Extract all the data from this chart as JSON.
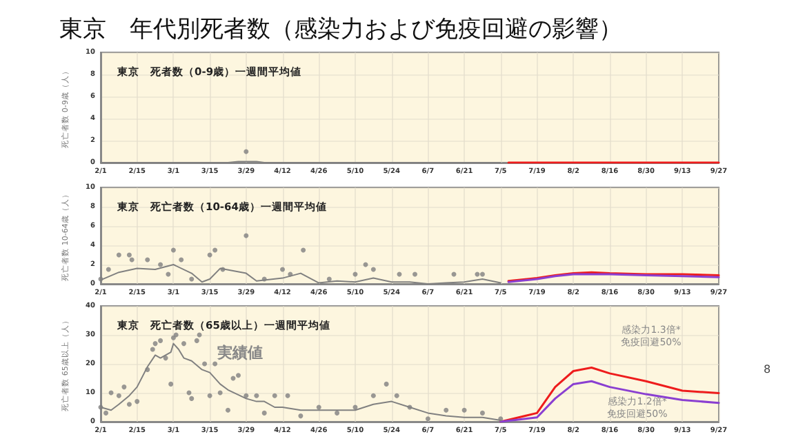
{
  "chart_data": [
    {
      "type": "line",
      "title": "東京　年代別死者数（感染力および免疫回避の影響）",
      "subtitle": "東京　死者数（0-9歳）一週間平均値",
      "ylabel": "死亡者数 0-9歳（人）",
      "xlim": [
        "--02-01",
        "--09-27"
      ],
      "xticks": [
        {
          "value": "--02-01",
          "label": "2/1"
        },
        {
          "value": "--02-15",
          "label": "2/15"
        },
        {
          "value": "--03-01",
          "label": "3/1"
        },
        {
          "value": "--03-15",
          "label": "3/15"
        },
        {
          "value": "--03-29",
          "label": "3/29"
        },
        {
          "value": "--04-12",
          "label": "4/12"
        },
        {
          "value": "--04-26",
          "label": "4/26"
        },
        {
          "value": "--05-10",
          "label": "5/10"
        },
        {
          "value": "--05-24",
          "label": "5/24"
        },
        {
          "value": "--06-07",
          "label": "6/7"
        },
        {
          "value": "--06-21",
          "label": "6/21"
        },
        {
          "value": "--07-05",
          "label": "7/5"
        },
        {
          "value": "--07-19",
          "label": "7/19"
        },
        {
          "value": "--08-02",
          "label": "8/2"
        },
        {
          "value": "--08-16",
          "label": "8/16"
        },
        {
          "value": "--08-30",
          "label": "8/30"
        },
        {
          "value": "--09-13",
          "label": "9/13"
        },
        {
          "value": "--09-27",
          "label": "9/27"
        }
      ],
      "ylim": [
        0,
        10
      ],
      "yticks": [
        0,
        2,
        4,
        6,
        8,
        10
      ],
      "grid": true,
      "series": [
        {
          "type": "scatter",
          "marker": "circle",
          "color": "#808080",
          "x": [
            "--03-29"
          ],
          "values": [
            1
          ]
        },
        {
          "type": "line",
          "marker": "none",
          "color": "#808080",
          "x": [
            "--02-01",
            "--03-22",
            "--03-26",
            "--04-02",
            "--04-05",
            "--07-05"
          ],
          "values": [
            0,
            0,
            0.1,
            0.1,
            0,
            0
          ]
        },
        {
          "type": "line",
          "marker": "none",
          "color": "#ee1c1c",
          "x": [
            "--07-08",
            "--08-09",
            "--09-27"
          ],
          "values": [
            0,
            0,
            0
          ]
        }
      ]
    },
    {
      "type": "line",
      "subtitle": "東京　死亡者数（10-64歳）一週間平均値",
      "ylabel": "死亡者数 10-64歳（人）",
      "xlim": [
        "--02-01",
        "--09-27"
      ],
      "xticks": [
        {
          "value": "--02-01",
          "label": "2/1"
        },
        {
          "value": "--02-15",
          "label": "2/15"
        },
        {
          "value": "--03-01",
          "label": "3/1"
        },
        {
          "value": "--03-15",
          "label": "3/15"
        },
        {
          "value": "--03-29",
          "label": "3/29"
        },
        {
          "value": "--04-12",
          "label": "4/12"
        },
        {
          "value": "--04-26",
          "label": "4/26"
        },
        {
          "value": "--05-10",
          "label": "5/10"
        },
        {
          "value": "--05-24",
          "label": "5/24"
        },
        {
          "value": "--06-07",
          "label": "6/7"
        },
        {
          "value": "--06-21",
          "label": "6/21"
        },
        {
          "value": "--07-05",
          "label": "7/5"
        },
        {
          "value": "--07-19",
          "label": "7/19"
        },
        {
          "value": "--08-02",
          "label": "8/2"
        },
        {
          "value": "--08-16",
          "label": "8/16"
        },
        {
          "value": "--08-30",
          "label": "8/30"
        },
        {
          "value": "--09-13",
          "label": "9/13"
        },
        {
          "value": "--09-27",
          "label": "9/27"
        }
      ],
      "ylim": [
        0,
        10
      ],
      "yticks": [
        0,
        2,
        4,
        6,
        8,
        10
      ],
      "grid": true,
      "series": [
        {
          "type": "scatter",
          "marker": "circle",
          "color": "#808080",
          "x": [
            "--02-01",
            "--02-04",
            "--02-08",
            "--02-12",
            "--02-13",
            "--02-19",
            "--02-24",
            "--02-27",
            "--03-01",
            "--03-04",
            "--03-08",
            "--03-15",
            "--03-17",
            "--03-20",
            "--03-29",
            "--04-05",
            "--04-12",
            "--04-15",
            "--04-20",
            "--04-30",
            "--05-10",
            "--05-14",
            "--05-17",
            "--05-27",
            "--06-02",
            "--06-17",
            "--06-26",
            "--06-28"
          ],
          "values": [
            0.5,
            1.5,
            3,
            3,
            2.5,
            2.5,
            2,
            1,
            3.5,
            2.5,
            0.5,
            3,
            3.5,
            1.5,
            5,
            0.5,
            1.5,
            1,
            3.5,
            0.5,
            1,
            2,
            1.5,
            1,
            1,
            1,
            1,
            1
          ]
        },
        {
          "type": "line",
          "marker": "none",
          "color": "#808080",
          "x": [
            "--02-01",
            "--02-08",
            "--02-15",
            "--02-22",
            "--03-01",
            "--03-08",
            "--03-12",
            "--03-15",
            "--03-19",
            "--03-29",
            "--04-02",
            "--04-12",
            "--04-19",
            "--04-26",
            "--05-03",
            "--05-10",
            "--05-17",
            "--05-24",
            "--05-31",
            "--06-07",
            "--06-14",
            "--06-21",
            "--06-28",
            "--07-05"
          ],
          "values": [
            0.4,
            1.2,
            1.6,
            1.5,
            2,
            1.1,
            0.2,
            0.5,
            1.6,
            1.1,
            0.3,
            0.6,
            1.1,
            0.1,
            0.3,
            0.2,
            0.6,
            0.2,
            0.2,
            0,
            0.1,
            0.2,
            0.5,
            0.1
          ]
        },
        {
          "type": "line",
          "marker": "none",
          "color": "#ee1c1c",
          "x": [
            "--07-08",
            "--07-19",
            "--07-26",
            "--08-02",
            "--08-09",
            "--08-16",
            "--08-30",
            "--09-13",
            "--09-27"
          ],
          "values": [
            0.3,
            0.6,
            0.9,
            1.1,
            1.2,
            1.1,
            1,
            1,
            0.9
          ]
        },
        {
          "type": "line",
          "marker": "none",
          "color": "#8a3fd1",
          "x": [
            "--07-08",
            "--07-19",
            "--07-26",
            "--08-02",
            "--08-09",
            "--08-16",
            "--08-30",
            "--09-13",
            "--09-27"
          ],
          "values": [
            0.2,
            0.5,
            0.8,
            1,
            1,
            1,
            0.9,
            0.8,
            0.7
          ]
        }
      ]
    },
    {
      "type": "line",
      "subtitle": "東京　死亡者数（65歳以上）一週間平均値",
      "ylabel": "死亡者数 65歳以上（人）",
      "xlim": [
        "--02-01",
        "--09-27"
      ],
      "xticks": [
        {
          "value": "--02-01",
          "label": "2/1"
        },
        {
          "value": "--02-15",
          "label": "2/15"
        },
        {
          "value": "--03-01",
          "label": "3/1"
        },
        {
          "value": "--03-15",
          "label": "3/15"
        },
        {
          "value": "--03-29",
          "label": "3/29"
        },
        {
          "value": "--04-12",
          "label": "4/12"
        },
        {
          "value": "--04-26",
          "label": "4/26"
        },
        {
          "value": "--05-10",
          "label": "5/10"
        },
        {
          "value": "--05-24",
          "label": "5/24"
        },
        {
          "value": "--06-07",
          "label": "6/7"
        },
        {
          "value": "--06-21",
          "label": "6/21"
        },
        {
          "value": "--07-05",
          "label": "7/5"
        },
        {
          "value": "--07-19",
          "label": "7/19"
        },
        {
          "value": "--08-02",
          "label": "8/2"
        },
        {
          "value": "--08-16",
          "label": "8/16"
        },
        {
          "value": "--08-30",
          "label": "8/30"
        },
        {
          "value": "--09-13",
          "label": "9/13"
        },
        {
          "value": "--09-27",
          "label": "9/27"
        }
      ],
      "ylim": [
        0,
        40
      ],
      "yticks": [
        0,
        10,
        20,
        30,
        40
      ],
      "grid": true,
      "annotations": [
        "実績値",
        "感染力1.3倍*\n免疫回避50%",
        "感染力1.2倍*\n免疫回避50%",
        "8"
      ],
      "series": [
        {
          "type": "scatter",
          "marker": "circle",
          "color": "#808080",
          "x": [
            "--02-01",
            "--02-03",
            "--02-05",
            "--02-08",
            "--02-10",
            "--02-12",
            "--02-15",
            "--02-19",
            "--02-21",
            "--02-22",
            "--02-24",
            "--02-26",
            "--02-28",
            "--03-01",
            "--03-02",
            "--03-05",
            "--03-07",
            "--03-08",
            "--03-10",
            "--03-11",
            "--03-13",
            "--03-15",
            "--03-17",
            "--03-19",
            "--03-22",
            "--03-24",
            "--03-26",
            "--03-29",
            "--04-02",
            "--04-05",
            "--04-09",
            "--04-14",
            "--04-19",
            "--04-26",
            "--05-03",
            "--05-10",
            "--05-17",
            "--05-22",
            "--05-26",
            "--05-31",
            "--06-07",
            "--06-14",
            "--06-21",
            "--06-28",
            "--07-05"
          ],
          "values": [
            5,
            3,
            10,
            9,
            12,
            6,
            7,
            18,
            25,
            27,
            28,
            22,
            13,
            29,
            30,
            27,
            10,
            8,
            28,
            30,
            20,
            9,
            20,
            10,
            4,
            15,
            16,
            9,
            9,
            3,
            9,
            9,
            2,
            5,
            3,
            5,
            9,
            13,
            9,
            5,
            1,
            4,
            4,
            3,
            1
          ]
        },
        {
          "type": "line",
          "marker": "none",
          "color": "#808080",
          "x": [
            "--02-01",
            "--02-05",
            "--02-08",
            "--02-12",
            "--02-15",
            "--02-19",
            "--02-22",
            "--02-24",
            "--02-26",
            "--02-28",
            "--03-01",
            "--03-03",
            "--03-05",
            "--03-08",
            "--03-12",
            "--03-15",
            "--03-19",
            "--03-22",
            "--03-29",
            "--04-02",
            "--04-05",
            "--04-09",
            "--04-12",
            "--04-19",
            "--04-26",
            "--05-03",
            "--05-10",
            "--05-17",
            "--05-24",
            "--05-31",
            "--06-07",
            "--06-14",
            "--06-21",
            "--06-28",
            "--07-05"
          ],
          "values": [
            5,
            4,
            6,
            9,
            12,
            19,
            23,
            22,
            23,
            24,
            27,
            25,
            22,
            21,
            18,
            17,
            13,
            11,
            8,
            7,
            7,
            5,
            5,
            4,
            4,
            4,
            4,
            6,
            7,
            5,
            3,
            2,
            1.5,
            1.5,
            0.5
          ]
        },
        {
          "type": "line",
          "marker": "none",
          "color": "#ee1c1c",
          "x": [
            "--07-05",
            "--07-19",
            "--07-26",
            "--08-02",
            "--08-09",
            "--08-16",
            "--08-30",
            "--09-13",
            "--09-27"
          ],
          "values": [
            0,
            3,
            12,
            17.5,
            18.7,
            16.7,
            14,
            10.7,
            9.9
          ]
        },
        {
          "type": "line",
          "marker": "none",
          "color": "#8a3fd1",
          "x": [
            "--07-05",
            "--07-19",
            "--07-26",
            "--08-02",
            "--08-09",
            "--08-16",
            "--08-30",
            "--09-13",
            "--09-27"
          ],
          "values": [
            0,
            1.5,
            8,
            13,
            14,
            12,
            9.5,
            7.5,
            6.5
          ]
        }
      ]
    }
  ]
}
